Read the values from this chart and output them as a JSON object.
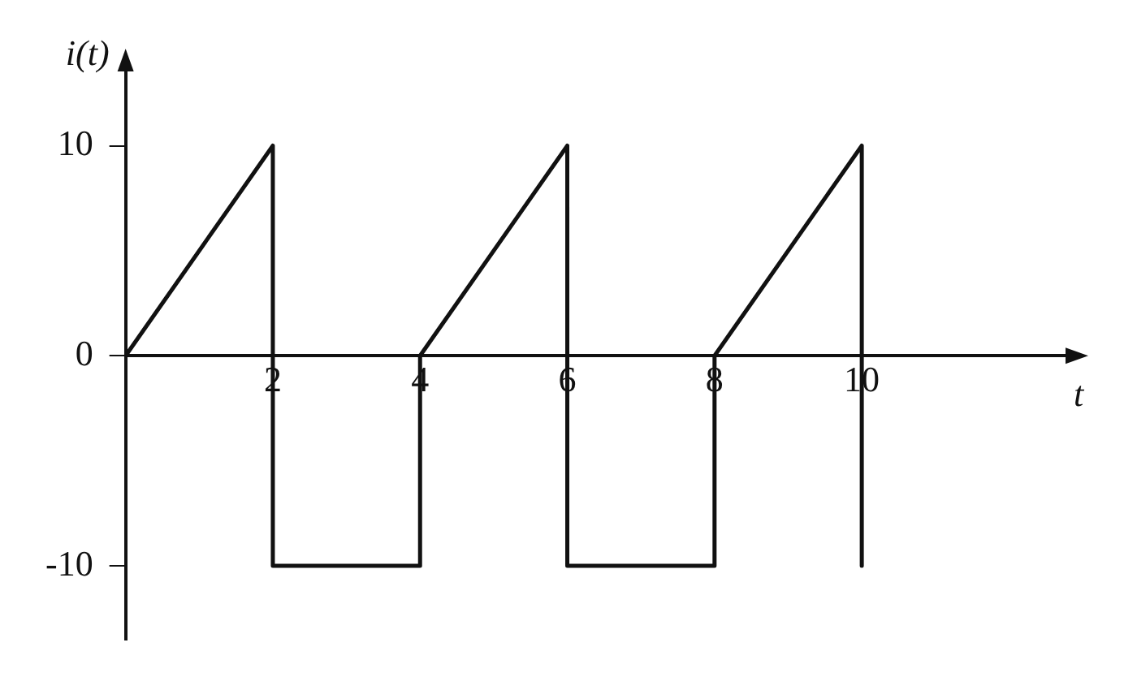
{
  "chart_data": {
    "type": "line",
    "xlabel": "t",
    "ylabel": "i(t)",
    "x": [
      0,
      2,
      2,
      4,
      4,
      6,
      6,
      8,
      8,
      10,
      10
    ],
    "series": [
      {
        "color": "#111111",
        "values": [
          0,
          10,
          -10,
          -10,
          0,
          10,
          -10,
          -10,
          0,
          10,
          -10
        ]
      }
    ],
    "xlim": [
      0,
      12.9
    ],
    "ylim": [
      -13.5,
      14
    ],
    "xticks": [
      2,
      4,
      6,
      8,
      10
    ],
    "yticks": [
      -10,
      0,
      10
    ],
    "grid": false,
    "legend": false,
    "marker": "none",
    "line_style": "solid"
  }
}
